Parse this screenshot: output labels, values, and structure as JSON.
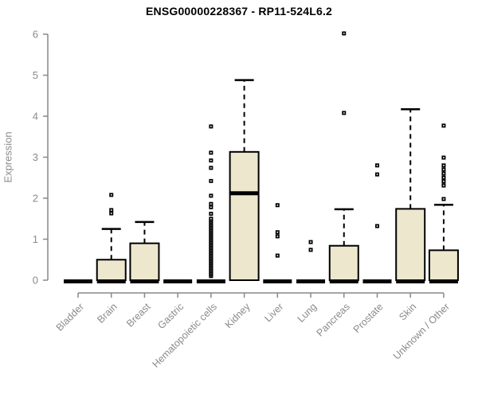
{
  "page": {
    "title": "ENSG00000228367 - RP11-524L6.2"
  },
  "chart_data": {
    "type": "boxplot",
    "title": "ENSG00000228367 - RP11-524L6.2",
    "xlabel": "",
    "ylabel": "Expression",
    "ylim": [
      0,
      6
    ],
    "yticks": [
      0,
      1,
      2,
      3,
      4,
      5,
      6
    ],
    "grid": false,
    "legend": "none",
    "colors": {
      "box_fill": "#ECE7CD",
      "box_border": "#000000",
      "median": "#000000",
      "outlier": "#000000",
      "axis": "#898989",
      "tick_label": "#8a8a8a",
      "title": "#000000"
    },
    "categories": [
      "Bladder",
      "Brain",
      "Breast",
      "Gastric",
      "Hematopoietic cells",
      "Kidney",
      "Liver",
      "Lung",
      "Pancreas",
      "Prostate",
      "Skin",
      "Unknown / Other"
    ],
    "boxes": [
      {
        "name": "Bladder",
        "q1": 0,
        "median": 0,
        "q3": 0,
        "whisker_low": 0,
        "whisker_high": 0,
        "outliers": []
      },
      {
        "name": "Brain",
        "q1": 0,
        "median": 0,
        "q3": 0.5,
        "whisker_low": 0,
        "whisker_high": 1.25,
        "outliers": [
          1.63,
          1.71,
          2.08
        ]
      },
      {
        "name": "Breast",
        "q1": 0,
        "median": 0,
        "q3": 0.9,
        "whisker_low": 0,
        "whisker_high": 1.42,
        "outliers": []
      },
      {
        "name": "Gastric",
        "q1": 0,
        "median": 0,
        "q3": 0,
        "whisker_low": 0,
        "whisker_high": 0,
        "outliers": []
      },
      {
        "name": "Hematopoietic cells",
        "q1": 0,
        "median": 0,
        "q3": 0,
        "whisker_low": 0,
        "whisker_high": 0,
        "outliers": [
          0.1,
          0.14,
          0.18,
          0.22,
          0.26,
          0.3,
          0.34,
          0.38,
          0.42,
          0.46,
          0.5,
          0.54,
          0.58,
          0.62,
          0.66,
          0.7,
          0.74,
          0.78,
          0.82,
          0.86,
          0.9,
          0.94,
          0.98,
          1.02,
          1.06,
          1.1,
          1.14,
          1.18,
          1.22,
          1.26,
          1.3,
          1.34,
          1.38,
          1.42,
          1.46,
          1.5,
          1.62,
          1.78,
          1.86,
          2.06,
          2.42,
          2.74,
          2.92,
          3.11,
          3.75
        ]
      },
      {
        "name": "Kidney",
        "q1": 0,
        "median": 2.15,
        "q3": 3.13,
        "whisker_low": 0,
        "whisker_high": 4.88,
        "outliers": []
      },
      {
        "name": "Liver",
        "q1": 0,
        "median": 0,
        "q3": 0,
        "whisker_low": 0,
        "whisker_high": 0,
        "outliers": [
          0.6,
          1.07,
          1.17,
          1.83
        ]
      },
      {
        "name": "Lung",
        "q1": 0,
        "median": 0,
        "q3": 0,
        "whisker_low": 0,
        "whisker_high": 0,
        "outliers": [
          0.74,
          0.93
        ]
      },
      {
        "name": "Pancreas",
        "q1": 0,
        "median": 0,
        "q3": 0.84,
        "whisker_low": 0,
        "whisker_high": 1.73,
        "outliers": [
          4.08,
          6.02
        ]
      },
      {
        "name": "Prostate",
        "q1": 0,
        "median": 0,
        "q3": 0,
        "whisker_low": 0,
        "whisker_high": 0,
        "outliers": [
          1.32,
          2.58,
          2.8
        ]
      },
      {
        "name": "Skin",
        "q1": 0,
        "median": 0,
        "q3": 1.74,
        "whisker_low": 0,
        "whisker_high": 4.17,
        "outliers": []
      },
      {
        "name": "Unknown / Other",
        "q1": 0,
        "median": 0,
        "q3": 0.73,
        "whisker_low": 0,
        "whisker_high": 1.84,
        "outliers": [
          1.98,
          2.31,
          2.41,
          2.5,
          2.6,
          2.7,
          2.8,
          2.99,
          3.77
        ]
      }
    ]
  }
}
